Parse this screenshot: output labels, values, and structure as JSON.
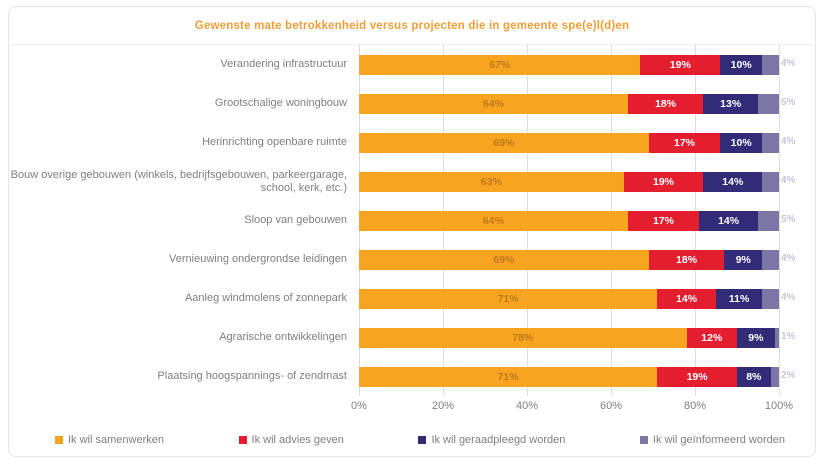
{
  "chart_data": {
    "type": "bar",
    "variant": "horizontal-stacked-100",
    "title": "Gewenste mate betrokkenheid versus projecten die in gemeente spe(e)l(d)en",
    "title_color": "#F09E38",
    "categories": [
      "Verandering infrastructuur",
      "Grootschalige woningbouw",
      "Herinrichting openbare ruimte",
      "Bouw overige gebouwen (winkels, bedrijfsgebouwen, parkeergarage, school, kerk, etc.)",
      "Sloop van gebouwen",
      "Vernieuwing ondergrondse leidingen",
      "Aanleg windmolens of zonnepark",
      "Agrarische ontwikkelingen",
      "Plaatsing hoogspannings- of zendmast"
    ],
    "series": [
      {
        "name": "Ik wil samenwerken",
        "color": "#F7A421",
        "values": [
          67,
          64,
          69,
          63,
          64,
          69,
          71,
          78,
          71
        ]
      },
      {
        "name": "Ik wil advies geven",
        "color": "#E41E2F",
        "values": [
          19,
          18,
          17,
          19,
          17,
          18,
          14,
          12,
          19
        ]
      },
      {
        "name": "Ik wil geraadpleegd worden",
        "color": "#322B78",
        "values": [
          10,
          13,
          10,
          14,
          14,
          9,
          11,
          9,
          8
        ]
      },
      {
        "name": "Ik wil geïnformeerd worden",
        "color": "#7C76A6",
        "values": [
          4,
          5,
          4,
          4,
          5,
          4,
          4,
          1,
          2
        ]
      }
    ],
    "xlim": [
      0,
      100
    ],
    "x_ticks": [
      "0%",
      "20%",
      "40%",
      "60%",
      "80%",
      "100%"
    ],
    "grid": "vertical",
    "legend_position": "bottom",
    "value_label_suffix": "%"
  }
}
